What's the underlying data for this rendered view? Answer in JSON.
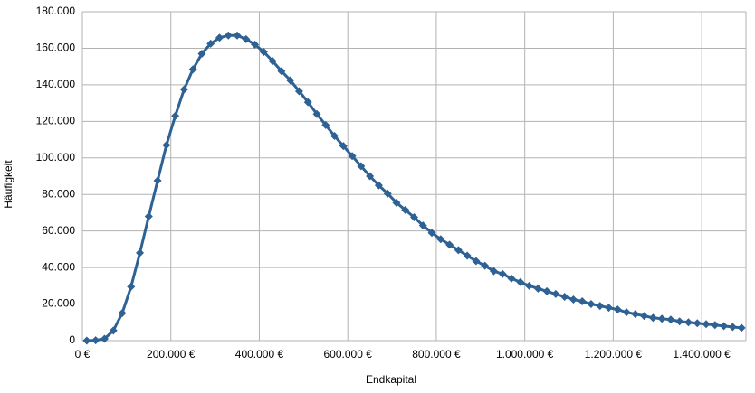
{
  "chart_data": {
    "type": "line",
    "x_label": "Endkapital",
    "y_label": "Häufigkeit",
    "x": [
      10000,
      30000,
      50000,
      70000,
      90000,
      110000,
      130000,
      150000,
      170000,
      190000,
      210000,
      230000,
      250000,
      270000,
      290000,
      310000,
      330000,
      350000,
      370000,
      390000,
      410000,
      430000,
      450000,
      470000,
      490000,
      510000,
      530000,
      550000,
      570000,
      590000,
      610000,
      630000,
      650000,
      670000,
      690000,
      710000,
      730000,
      750000,
      770000,
      790000,
      810000,
      830000,
      850000,
      870000,
      890000,
      910000,
      930000,
      950000,
      970000,
      990000,
      1010000,
      1030000,
      1050000,
      1070000,
      1090000,
      1110000,
      1130000,
      1150000,
      1170000,
      1190000,
      1210000,
      1230000,
      1250000,
      1270000,
      1290000,
      1310000,
      1330000,
      1350000,
      1370000,
      1390000,
      1410000,
      1430000,
      1450000,
      1470000,
      1490000
    ],
    "values": [
      0,
      200,
      1000,
      5500,
      15000,
      29500,
      48000,
      68000,
      87500,
      107000,
      123000,
      137500,
      148500,
      157000,
      162500,
      165800,
      167000,
      167000,
      165000,
      162000,
      158000,
      153000,
      147500,
      142500,
      136500,
      130500,
      124000,
      118000,
      112000,
      106500,
      101000,
      95500,
      90000,
      85000,
      80500,
      75500,
      71500,
      67500,
      63000,
      59000,
      55500,
      52500,
      49500,
      46500,
      43500,
      41000,
      38000,
      36500,
      34000,
      32000,
      30000,
      28500,
      27000,
      25500,
      24000,
      22500,
      21500,
      20000,
      19000,
      18000,
      17000,
      15500,
      14500,
      13500,
      12500,
      12000,
      11500,
      10500,
      10000,
      9500,
      9000,
      8500,
      8000,
      7500,
      7000
    ],
    "color": "#2f6294",
    "xlim": [
      0,
      1500000
    ],
    "xticks": [
      {
        "value": 0,
        "label": "0 €"
      },
      {
        "value": 200000,
        "label": "200.000 €"
      },
      {
        "value": 400000,
        "label": "400.000 €"
      },
      {
        "value": 600000,
        "label": "600.000 €"
      },
      {
        "value": 800000,
        "label": "800.000 €"
      },
      {
        "value": 1000000,
        "label": "1.000.000 €"
      },
      {
        "value": 1200000,
        "label": "1.200.000 €"
      },
      {
        "value": 1400000,
        "label": "1.400.000 €"
      }
    ],
    "ylim": [
      0,
      180000
    ],
    "yticks": [
      0,
      {
        "value": 20000,
        "label": "20.000"
      },
      {
        "value": 40000,
        "label": "40.000"
      },
      {
        "value": 60000,
        "label": "60.000"
      },
      {
        "value": 80000,
        "label": "80.000"
      },
      {
        "value": 100000,
        "label": "100.000"
      },
      {
        "value": 120000,
        "label": "120.000"
      },
      {
        "value": 140000,
        "label": "140.000"
      },
      {
        "value": 160000,
        "label": "160.000"
      },
      {
        "value": 180000,
        "label": "180.000"
      }
    ],
    "grid": true
  }
}
